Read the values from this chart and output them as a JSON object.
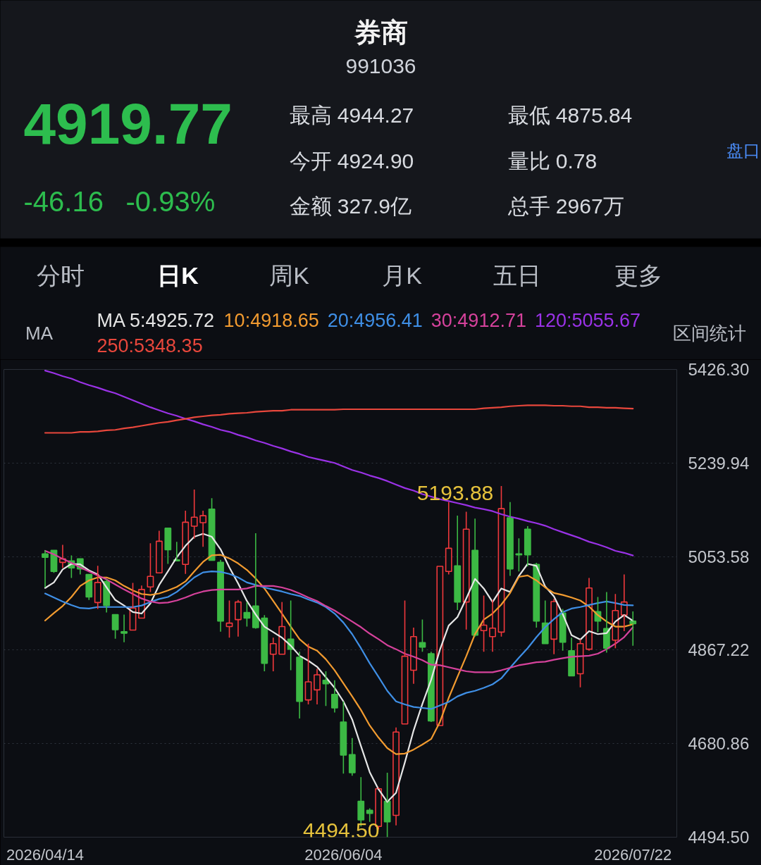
{
  "chart_data": {
    "type": "candlestick",
    "title": "券商",
    "subtitle": "991036",
    "categories": [
      "2026/04/14",
      null,
      null,
      null,
      null,
      null,
      null,
      null,
      null,
      null,
      null,
      null,
      null,
      null,
      null,
      null,
      null,
      null,
      null,
      null,
      null,
      null,
      null,
      null,
      null,
      null,
      null,
      null,
      null,
      null,
      null,
      null,
      null,
      null,
      "2026/06/04",
      null,
      null,
      null,
      null,
      null,
      null,
      null,
      null,
      null,
      null,
      null,
      null,
      null,
      null,
      null,
      null,
      null,
      null,
      null,
      null,
      null,
      null,
      null,
      null,
      null,
      null,
      null,
      null,
      null,
      null,
      null,
      null,
      "2026/07/22"
    ],
    "ohlc": [
      [
        5059,
        5066,
        4992,
        5052
      ],
      [
        5066,
        5066,
        5021,
        5024
      ],
      [
        5042,
        5077,
        5031,
        5049
      ],
      [
        5045,
        5056,
        5011,
        5031
      ],
      [
        5049,
        5049,
        5018,
        5029
      ],
      [
        5018,
        5018,
        4967,
        4973
      ],
      [
        4962,
        5035,
        4949,
        5002
      ],
      [
        5004,
        5008,
        4942,
        4956
      ],
      [
        4938,
        4938,
        4890,
        4908
      ],
      [
        4904,
        4938,
        4883,
        4901
      ],
      [
        4907,
        5001,
        4907,
        4951
      ],
      [
        4931,
        4996,
        4931,
        4988
      ],
      [
        4993,
        5080,
        4983,
        5014
      ],
      [
        5021,
        5105,
        5021,
        5084
      ],
      [
        5110,
        5110,
        5039,
        5067
      ],
      [
        5047,
        5083,
        5045,
        5045
      ],
      [
        5038,
        5145,
        5019,
        5122
      ],
      [
        5114,
        5187,
        5089,
        5132
      ],
      [
        5121,
        5145,
        5073,
        5135
      ],
      [
        5148,
        5170,
        5046,
        5046
      ],
      [
        5042,
        5047,
        4904,
        4925
      ],
      [
        4914,
        4966,
        4892,
        4921
      ],
      [
        4928,
        4967,
        4894,
        4963
      ],
      [
        4942,
        4963,
        4914,
        4931
      ],
      [
        4955,
        5100,
        4910,
        4912
      ],
      [
        4931,
        4937,
        4825,
        4841
      ],
      [
        4859,
        4892,
        4825,
        4880
      ],
      [
        4859,
        4963,
        4859,
        4914
      ],
      [
        4889,
        4966,
        4827,
        4869
      ],
      [
        4853,
        4864,
        4731,
        4765
      ],
      [
        4768,
        4880,
        4759,
        4804
      ],
      [
        4788,
        4830,
        4759,
        4818
      ],
      [
        4807,
        4825,
        4756,
        4800
      ],
      [
        4779,
        4807,
        4743,
        4752
      ],
      [
        4724,
        4765,
        4621,
        4658
      ],
      [
        4659,
        4692,
        4617,
        4623
      ],
      [
        4566,
        4614,
        4516,
        4529
      ],
      [
        4548,
        4552,
        4525,
        4542
      ],
      [
        4516,
        4594,
        4510,
        4591
      ],
      [
        4566,
        4623,
        4494.5,
        4525
      ],
      [
        4538,
        4713,
        4518,
        4704
      ],
      [
        4720,
        4966,
        4720,
        4855
      ],
      [
        4827,
        4912,
        4800,
        4894
      ],
      [
        4882,
        4928,
        4864,
        4873
      ],
      [
        4860,
        4864,
        4724,
        4726
      ],
      [
        4717,
        5034,
        4717,
        5034
      ],
      [
        5024,
        5162,
        5018,
        5070
      ],
      [
        5035,
        5135,
        4947,
        4963
      ],
      [
        4963,
        5143,
        4908,
        5108
      ],
      [
        5066,
        5129,
        4894,
        4897
      ],
      [
        4906,
        4976,
        4864,
        4917
      ],
      [
        4894,
        4967,
        4864,
        4911
      ],
      [
        4903,
        5193.88,
        4894,
        5149
      ],
      [
        5131,
        5162,
        5015,
        5029
      ],
      [
        5059,
        5090,
        5024,
        5057
      ],
      [
        5108,
        5114,
        5034,
        5057
      ],
      [
        5038,
        5041,
        4912,
        4925
      ],
      [
        4921,
        4966,
        4880,
        4880
      ],
      [
        4889,
        4969,
        4859,
        4964
      ],
      [
        4941,
        4949,
        4866,
        4883
      ],
      [
        4866,
        4892,
        4816,
        4816
      ],
      [
        4820,
        4889,
        4793,
        4880
      ],
      [
        4869,
        5011,
        4866,
        4991
      ],
      [
        4944,
        4973,
        4903,
        4925
      ],
      [
        4910,
        4983,
        4862,
        4871
      ],
      [
        4887,
        4979,
        4871,
        4946
      ],
      [
        4937,
        5018,
        4905,
        4963
      ],
      [
        4924.9,
        4944.27,
        4875.84,
        4919.77
      ]
    ],
    "colors": [
      "#3cb944",
      "#3cb944",
      "#f0383c",
      "#3cb944",
      "#3cb944",
      "#3cb944",
      "#f0383c",
      "#3cb944",
      "#3cb944",
      "#3cb944",
      "#f0383c",
      "#f0383c",
      "#f0383c",
      "#f0383c",
      "#3cb944",
      "#3cb944",
      "#f0383c",
      "#f0383c",
      "#f0383c",
      "#3cb944",
      "#3cb944",
      "#f0383c",
      "#f0383c",
      "#3cb944",
      "#3cb944",
      "#3cb944",
      "#f0383c",
      "#f0383c",
      "#3cb944",
      "#3cb944",
      "#f0383c",
      "#f0383c",
      "#3cb944",
      "#3cb944",
      "#3cb944",
      "#3cb944",
      "#3cb944",
      "#3cb944",
      "#f0383c",
      "#3cb944",
      "#f0383c",
      "#f0383c",
      "#f0383c",
      "#3cb944",
      "#3cb944",
      "#f0383c",
      "#f0383c",
      "#3cb944",
      "#f0383c",
      "#3cb944",
      "#f0383c",
      "#f0383c",
      "#f0383c",
      "#3cb944",
      "#3cb944",
      "#3cb944",
      "#3cb944",
      "#3cb944",
      "#f0383c",
      "#3cb944",
      "#3cb944",
      "#f0383c",
      "#f0383c",
      "#3cb944",
      "#3cb944",
      "#f0383c",
      "#f0383c",
      "#3cb944"
    ],
    "series": [
      {
        "type": "line",
        "name": "MA 5:4925.72",
        "color": "#e6e6e6",
        "values": [
          4991,
          5002,
          5028,
          5039,
          5038,
          5026,
          5018,
          4992,
          4967,
          4956,
          4943,
          4940,
          4960,
          4997,
          5024,
          5052,
          5075,
          5093,
          5099,
          5093,
          5068,
          5032,
          5000,
          4965,
          4938,
          4914,
          4903,
          4892,
          4876,
          4856,
          4846,
          4834,
          4813,
          4792,
          4765,
          4729,
          4676,
          4624,
          4590,
          4565,
          4583,
          4643,
          4707,
          4760,
          4808,
          4868,
          4916,
          4933,
          4970,
          5009,
          4990,
          4963,
          4990,
          4983,
          5015,
          5039,
          5035,
          4994,
          4974,
          4939,
          4897,
          4888,
          4905,
          4899,
          4901,
          4924,
          4937,
          4925.72
        ]
      },
      {
        "type": "line",
        "name": "10:4918.65",
        "color": "#f29b30",
        "values": [
          4926,
          4941,
          4955,
          4973,
          4995,
          5006,
          5012,
          5012,
          5006,
          4995,
          4986,
          4979,
          4977,
          4980,
          4986,
          4993,
          5004,
          5024,
          5043,
          5056,
          5057,
          5050,
          5040,
          5027,
          5010,
          4990,
          4965,
          4940,
          4914,
          4889,
          4874,
          4866,
          4849,
          4827,
          4801,
          4775,
          4748,
          4717,
          4693,
          4672,
          4660,
          4661,
          4669,
          4679,
          4690,
          4724,
          4772,
          4814,
          4855,
          4899,
          4928,
          4940,
          4958,
          4981,
          5013,
          5016,
          5006,
          4992,
          4981,
          4977,
          4972,
          4966,
          4954,
          4937,
          4924,
          4914,
          4914,
          4918.65
        ]
      },
      {
        "type": "line",
        "name": "20:4956.41",
        "color": "#3f8fe6",
        "values": [
          4980,
          4972,
          4964,
          4957,
          4951,
          4950,
          4953,
          4953,
          4953,
          4953,
          4953,
          4956,
          4963,
          4969,
          4973,
          4983,
          4997,
          5012,
          5022,
          5024,
          5023,
          5019,
          5012,
          5002,
          4997,
          4992,
          4988,
          4984,
          4979,
          4975,
          4968,
          4962,
          4953,
          4940,
          4922,
          4899,
          4871,
          4841,
          4814,
          4786,
          4765,
          4759,
          4754,
          4752,
          4750,
          4757,
          4764,
          4775,
          4782,
          4786,
          4792,
          4799,
          4811,
          4832,
          4852,
          4871,
          4893,
          4913,
          4929,
          4943,
          4950,
          4953,
          4957,
          4961,
          4964,
          4961,
          4957,
          4956.41
        ]
      },
      {
        "type": "line",
        "name": "30:4912.71",
        "color": "#d6429c",
        "values": [
          5065,
          5058,
          5049,
          5041,
          5032,
          5024,
          5016,
          5008,
          4998,
          4988,
          4979,
          4970,
          4964,
          4961,
          4962,
          4966,
          4972,
          4979,
          4984,
          4987,
          4988,
          4988,
          4988,
          4990,
          4995,
          4995,
          4995,
          4992,
          4987,
          4980,
          4972,
          4965,
          4955,
          4946,
          4935,
          4924,
          4913,
          4900,
          4889,
          4877,
          4869,
          4860,
          4854,
          4847,
          4838,
          4837,
          4833,
          4829,
          4825,
          4823,
          4823,
          4823,
          4827,
          4832,
          4837,
          4840,
          4843,
          4844,
          4848,
          4851,
          4854,
          4855,
          4856,
          4860,
          4869,
          4880,
          4893,
          4912.71
        ]
      },
      {
        "type": "line",
        "name": "120:5055.67",
        "color": "#9a32e6",
        "values": [
          5424,
          5419,
          5413,
          5408,
          5401,
          5395,
          5390,
          5384,
          5379,
          5372,
          5365,
          5358,
          5351,
          5345,
          5339,
          5334,
          5328,
          5323,
          5317,
          5312,
          5306,
          5302,
          5296,
          5291,
          5285,
          5280,
          5274,
          5269,
          5263,
          5258,
          5252,
          5248,
          5244,
          5240,
          5233,
          5226,
          5221,
          5215,
          5210,
          5204,
          5197,
          5190,
          5185,
          5178,
          5173,
          5168,
          5164,
          5160,
          5156,
          5151,
          5148,
          5144,
          5138,
          5133,
          5129,
          5124,
          5120,
          5115,
          5108,
          5102,
          5096,
          5090,
          5083,
          5078,
          5072,
          5065,
          5061,
          5055.67
        ]
      },
      {
        "type": "line",
        "name": "250:5348.35",
        "color": "#e8473c",
        "values": [
          5300,
          5300,
          5300,
          5300,
          5302,
          5302,
          5303,
          5305,
          5306,
          5309,
          5311,
          5314,
          5317,
          5320,
          5322,
          5325,
          5328,
          5331,
          5333,
          5335,
          5336,
          5338,
          5339,
          5340,
          5342,
          5343,
          5344,
          5344,
          5346,
          5346,
          5346,
          5346,
          5346,
          5346,
          5347,
          5347,
          5347,
          5347,
          5347,
          5347,
          5347,
          5347,
          5347,
          5347,
          5347,
          5347,
          5347,
          5347,
          5347,
          5347,
          5349,
          5350,
          5351,
          5353,
          5354,
          5355,
          5355,
          5355,
          5354,
          5354,
          5353,
          5353,
          5351,
          5351,
          5350,
          5350,
          5349,
          5348.35
        ]
      }
    ],
    "ylim": [
      4494.5,
      5426.3
    ],
    "yticks": [
      {
        "value": 5426.3,
        "label": "5426.30"
      },
      5239.94,
      5053.58,
      4867.22,
      4680.86,
      {
        "value": 4494.5,
        "label": "4494.50"
      }
    ],
    "grid": "y",
    "legend": "top",
    "annotations": [
      "4919.77",
      "-46.16",
      "-0.93%",
      "最高 4944.27",
      "最低 4875.84",
      "今开 4924.90",
      "量比 0.78",
      "金额 327.9亿",
      "总手 2967万",
      "盘口",
      "分时",
      "日K",
      "周K",
      "月K",
      "五日",
      "更多",
      "MA",
      "区间统计",
      "5193.88",
      "4494.50"
    ]
  }
}
